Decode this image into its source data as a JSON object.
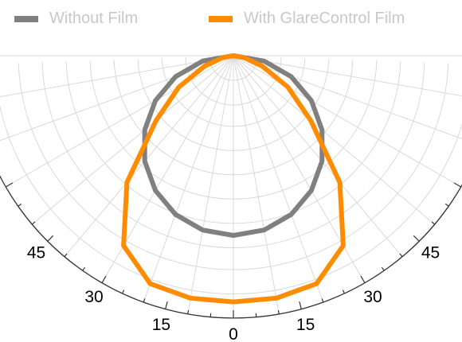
{
  "legend": [
    {
      "label": "Without Film",
      "color": "#808080"
    },
    {
      "label": "With GlareControl Film",
      "color": "#ff8c00"
    }
  ],
  "chart_data": {
    "type": "polar",
    "title": "",
    "angle_ticks_labeled": [
      0,
      15,
      30,
      45
    ],
    "angle_range": [
      -70,
      70
    ],
    "radial_range": [
      0,
      1
    ],
    "grid": true,
    "legend_position": "top",
    "series": [
      {
        "name": "Without Film",
        "color": "#808080",
        "angles": [
          -90,
          -80,
          -70,
          -60,
          -50,
          -40,
          -30,
          -20,
          -10,
          0,
          10,
          20,
          30,
          40,
          50,
          60,
          70,
          80,
          90
        ],
        "values": [
          0,
          0.174,
          0.342,
          0.5,
          0.643,
          0.766,
          0.866,
          0.94,
          0.985,
          1,
          0.985,
          0.94,
          0.866,
          0.766,
          0.643,
          0.5,
          0.342,
          0.174,
          0
        ]
      },
      {
        "name": "With GlareControl Film",
        "color": "#ff8c00",
        "angles": [
          -90,
          -80,
          -70,
          -60,
          -50,
          -40,
          -30,
          -20,
          -10,
          0,
          10,
          20,
          30,
          40,
          50,
          60,
          70,
          80,
          90
        ],
        "values": [
          0,
          0.06,
          0.17,
          0.35,
          0.56,
          0.92,
          1.22,
          1.35,
          1.37,
          1.37,
          1.37,
          1.35,
          1.22,
          0.92,
          0.56,
          0.35,
          0.17,
          0.06,
          0
        ]
      }
    ]
  }
}
